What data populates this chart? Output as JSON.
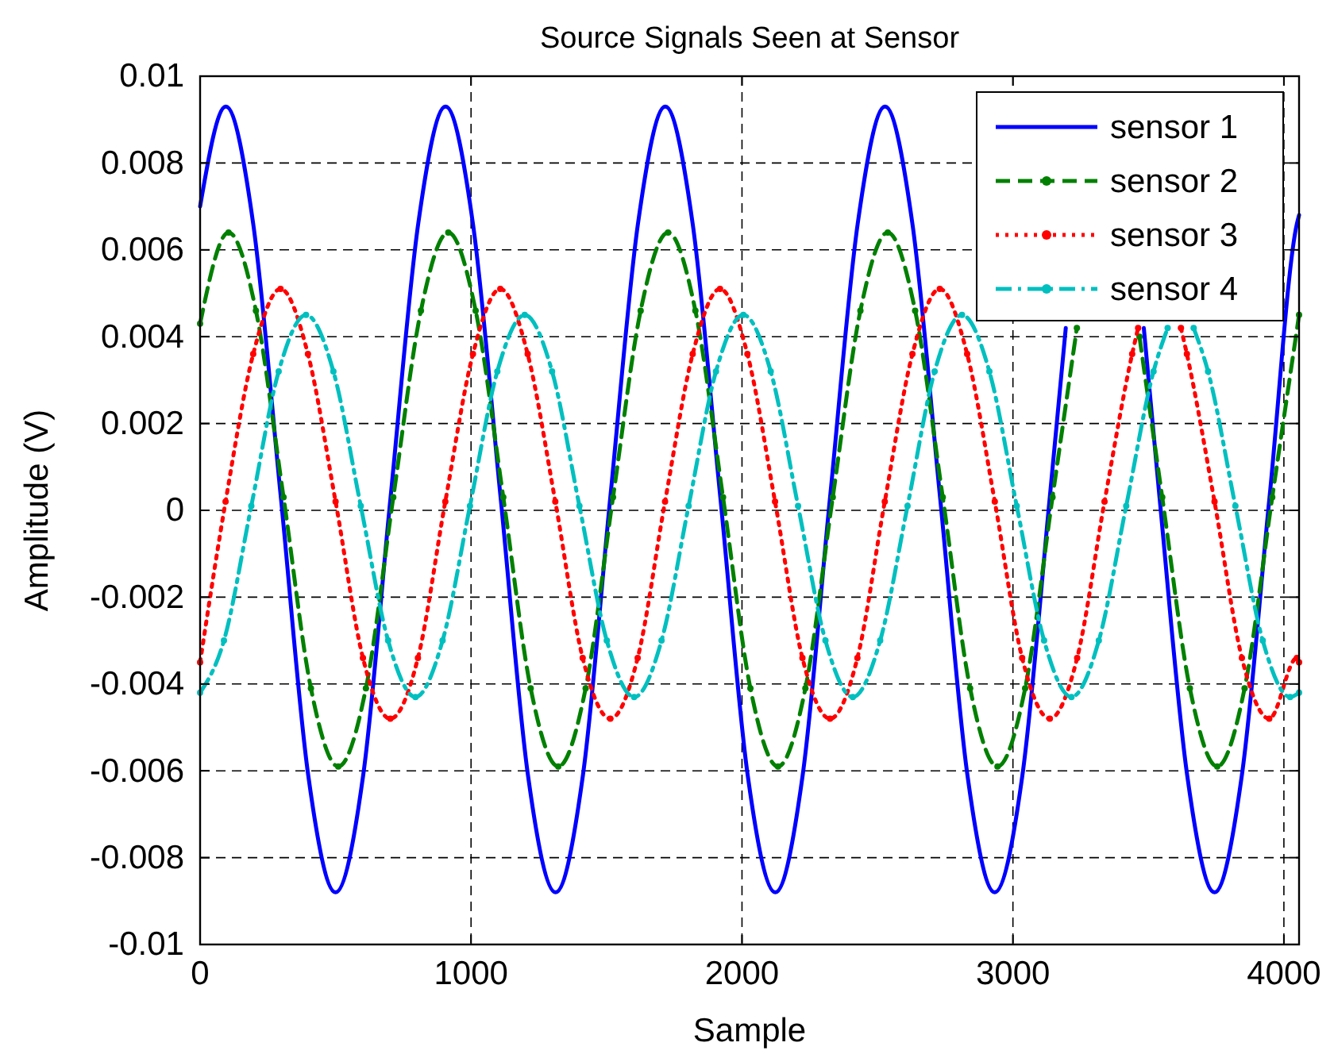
{
  "chart_data": {
    "type": "line",
    "title": "Source Signals Seen at Sensor",
    "xlabel": "Sample",
    "ylabel": "Amplitude (V)",
    "xlim": [
      0,
      4056
    ],
    "ylim": [
      -0.01,
      0.01
    ],
    "xticks": [
      0,
      1000,
      2000,
      3000,
      4000
    ],
    "yticks": [
      -0.01,
      -0.008,
      -0.006,
      -0.004,
      -0.002,
      0,
      0.002,
      0.004,
      0.006,
      0.008,
      0.01
    ],
    "grid": true,
    "legend": "top right",
    "series": [
      {
        "name": "sensor 1",
        "color": "#0000ff",
        "line_style": "solid",
        "marker": "none",
        "x": [
          0,
          95,
          196,
          298,
          399,
          500,
          602,
          703,
          805,
          906,
          1007,
          1109,
          1210,
          1312,
          1413,
          1514,
          1616,
          1717,
          1818,
          1920,
          2021,
          2123,
          2224,
          2325,
          2427,
          2528,
          2629,
          2731,
          2832,
          2933,
          3035,
          3136,
          3195,
          3339,
          3483,
          3541,
          3643,
          3744,
          3845,
          3947,
          4048,
          4056
        ],
        "values": [
          0.007,
          0.0093,
          0.0066,
          0.0003,
          -0.0061,
          -0.0088,
          -0.0061,
          0.0003,
          0.0066,
          0.0093,
          0.0066,
          0.0003,
          -0.0061,
          -0.0088,
          -0.0061,
          0.0003,
          0.0066,
          0.0093,
          0.0066,
          0.0003,
          -0.0061,
          -0.0088,
          -0.0061,
          0.0003,
          0.0066,
          0.0093,
          0.0066,
          0.0003,
          -0.0061,
          -0.0088,
          -0.0061,
          0.0003,
          0.0042,
          null,
          0.0042,
          0.0003,
          -0.0061,
          -0.0088,
          -0.0061,
          0.0003,
          0.0066,
          0.0068
        ]
      },
      {
        "name": "sensor 2",
        "color": "#008000",
        "line_style": "dashed",
        "marker": "circle",
        "x": [
          0,
          105,
          206,
          308,
          409,
          510,
          612,
          713,
          815,
          916,
          1017,
          1119,
          1220,
          1322,
          1423,
          1524,
          1626,
          1727,
          1828,
          1930,
          2031,
          2133,
          2234,
          2335,
          2437,
          2538,
          2639,
          2741,
          2842,
          2943,
          3045,
          3146,
          3236,
          3349,
          3467,
          3551,
          3653,
          3754,
          3855,
          3957,
          4056
        ],
        "values": [
          0.0043,
          0.0064,
          0.0046,
          0.0003,
          -0.0041,
          -0.0059,
          -0.0041,
          0.0003,
          0.0046,
          0.0064,
          0.0046,
          0.0003,
          -0.0041,
          -0.0059,
          -0.0041,
          0.0003,
          0.0046,
          0.0064,
          0.0046,
          0.0003,
          -0.0041,
          -0.0059,
          -0.0041,
          0.0003,
          0.0046,
          0.0064,
          0.0046,
          0.0003,
          -0.0041,
          -0.0059,
          -0.0041,
          0.0003,
          0.0042,
          null,
          0.004,
          0.0003,
          -0.0041,
          -0.0059,
          -0.0041,
          0.0003,
          0.0045
        ]
      },
      {
        "name": "sensor 3",
        "color": "#ff0000",
        "line_style": "dotted",
        "marker": "circle",
        "x": [
          0,
          94,
          196,
          297,
          398,
          500,
          601,
          702,
          804,
          905,
          1007,
          1108,
          1209,
          1311,
          1412,
          1514,
          1615,
          1716,
          1818,
          1919,
          2020,
          2122,
          2223,
          2325,
          2426,
          2527,
          2629,
          2730,
          2831,
          2933,
          3034,
          3136,
          3237,
          3338,
          3440,
          3462,
          3541,
          3620,
          3642,
          3744,
          3845,
          3946,
          4048,
          4056
        ],
        "values": [
          -0.0035,
          0.0002,
          0.0036,
          0.0051,
          0.0036,
          0.0002,
          -0.0034,
          -0.0048,
          -0.0034,
          0.0002,
          0.0036,
          0.0051,
          0.0036,
          0.0002,
          -0.0034,
          -0.0048,
          -0.0034,
          0.0002,
          0.0036,
          0.0051,
          0.0036,
          0.0002,
          -0.0034,
          -0.0048,
          -0.0034,
          0.0002,
          0.0036,
          0.0051,
          0.0036,
          0.0002,
          -0.0034,
          -0.0048,
          -0.0034,
          0.0002,
          0.0036,
          0.0042,
          null,
          0.0042,
          0.0036,
          0.0002,
          -0.0034,
          -0.0048,
          -0.0034,
          -0.0035
        ]
      },
      {
        "name": "sensor 4",
        "color": "#00bfbf",
        "line_style": "dashdot",
        "marker": "circle",
        "x": [
          0,
          88,
          189,
          290,
          391,
          492,
          593,
          694,
          795,
          895,
          996,
          1097,
          1198,
          1299,
          1400,
          1501,
          1602,
          1703,
          1803,
          1904,
          2005,
          2106,
          2207,
          2308,
          2409,
          2510,
          2611,
          2711,
          2812,
          2913,
          3014,
          3115,
          3216,
          3317,
          3418,
          3519,
          3571,
          3619,
          3667,
          3720,
          3821,
          3922,
          4023,
          4056
        ],
        "values": [
          -0.0042,
          -0.003,
          0.0001,
          0.0032,
          0.0045,
          0.0032,
          0.0001,
          -0.003,
          -0.0043,
          -0.003,
          0.0001,
          0.0032,
          0.0045,
          0.0032,
          0.0001,
          -0.003,
          -0.0043,
          -0.003,
          0.0001,
          0.0032,
          0.0045,
          0.0032,
          0.0001,
          -0.003,
          -0.0043,
          -0.003,
          0.0001,
          0.0032,
          0.0045,
          0.0032,
          0.0001,
          -0.003,
          -0.0043,
          -0.003,
          0.0001,
          0.0032,
          0.0042,
          null,
          0.0042,
          0.0032,
          0.0001,
          -0.003,
          -0.0043,
          -0.0042
        ]
      }
    ]
  }
}
